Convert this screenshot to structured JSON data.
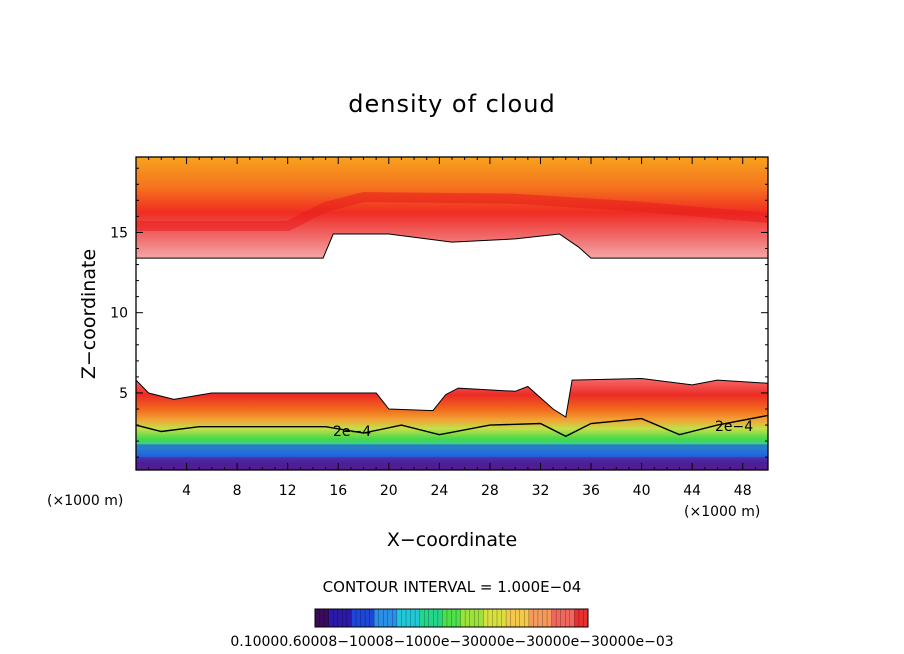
{
  "chart_data": {
    "type": "heatmap",
    "title": "density of cloud",
    "xlabel": "X−coordinate",
    "ylabel": "Z−coordinate",
    "x_unit_left": "(×1000 m)",
    "x_unit_right": "(×1000 m)",
    "xlim": [
      0,
      50
    ],
    "ylim": [
      0.2,
      19.7
    ],
    "x_ticks": [
      "4",
      "8",
      "12",
      "16",
      "20",
      "24",
      "28",
      "32",
      "36",
      "40",
      "44",
      "48"
    ],
    "y_ticks": [
      "5",
      "10",
      "15"
    ],
    "contour_interval_text": "CONTOUR INTERVAL = 1.000E−04",
    "contour_label": "2e−4",
    "colorbar_labels_text": "0.10000.60008−10008−1000e−30000e−30000e−30000e−03",
    "colorbar_colors": [
      "#3a0a5c",
      "#2b1aa8",
      "#1e46d8",
      "#2a8fe6",
      "#22c8d8",
      "#25d68a",
      "#4ee04a",
      "#9be23a",
      "#d7e03e",
      "#f4c84a",
      "#f59a5a",
      "#f0675e",
      "#ea2f2f"
    ],
    "upper_layer": {
      "top_z": 19.7,
      "base_profile": [
        [
          0,
          13.4
        ],
        [
          14.8,
          13.4
        ],
        [
          15.6,
          14.9
        ],
        [
          20,
          14.9
        ],
        [
          25,
          14.4
        ],
        [
          30,
          14.6
        ],
        [
          33.5,
          14.9
        ],
        [
          35,
          14.1
        ],
        [
          36,
          13.4
        ],
        [
          50,
          13.4
        ]
      ],
      "core_profile": [
        [
          0,
          15.4
        ],
        [
          12,
          15.4
        ],
        [
          15,
          16.6
        ],
        [
          18,
          17.2
        ],
        [
          30,
          17.1
        ],
        [
          40,
          16.6
        ],
        [
          50,
          15.9
        ]
      ]
    },
    "lower_layer": {
      "top_profile": [
        [
          0,
          5.8
        ],
        [
          1,
          5.0
        ],
        [
          3,
          4.6
        ],
        [
          6,
          5.0
        ],
        [
          19,
          5.0
        ],
        [
          20,
          4.0
        ],
        [
          23.5,
          3.9
        ],
        [
          24.5,
          4.9
        ],
        [
          25.5,
          5.3
        ],
        [
          30,
          5.1
        ],
        [
          31,
          5.4
        ],
        [
          33,
          4.0
        ],
        [
          34,
          3.5
        ],
        [
          34.5,
          5.8
        ],
        [
          40,
          5.9
        ],
        [
          44,
          5.5
        ],
        [
          46,
          5.8
        ],
        [
          50,
          5.6
        ]
      ],
      "contour_2e4_profile": [
        [
          0,
          3.0
        ],
        [
          2,
          2.6
        ],
        [
          5,
          2.9
        ],
        [
          15,
          2.9
        ],
        [
          18,
          2.5
        ],
        [
          21,
          3.0
        ],
        [
          24,
          2.4
        ],
        [
          28,
          3.0
        ],
        [
          32,
          3.1
        ],
        [
          34,
          2.3
        ],
        [
          36,
          3.1
        ],
        [
          40,
          3.4
        ],
        [
          43,
          2.4
        ],
        [
          46,
          3.0
        ],
        [
          50,
          3.6
        ]
      ],
      "blue_band_z": [
        1.0,
        1.8
      ]
    }
  }
}
